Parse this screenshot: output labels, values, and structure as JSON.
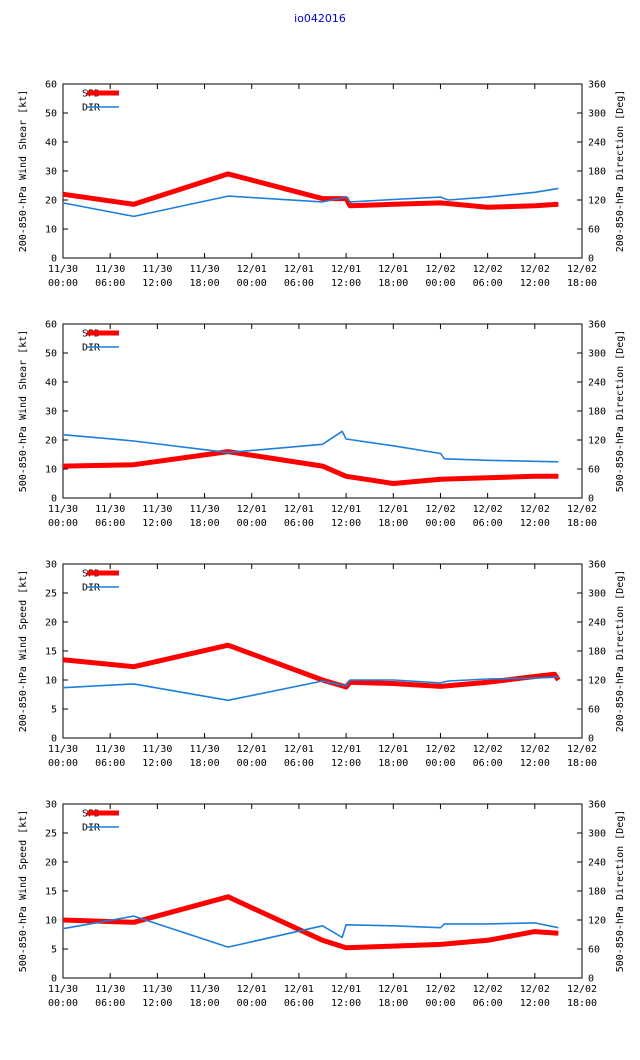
{
  "page_title": "io042016",
  "colors": {
    "spd": "#ff0000",
    "dir": "#1c7fdc",
    "title": "#0000cc"
  },
  "x_ticks": [
    [
      "11/30",
      "00:00"
    ],
    [
      "11/30",
      "06:00"
    ],
    [
      "11/30",
      "12:00"
    ],
    [
      "11/30",
      "18:00"
    ],
    [
      "12/01",
      "00:00"
    ],
    [
      "12/01",
      "06:00"
    ],
    [
      "12/01",
      "12:00"
    ],
    [
      "12/01",
      "18:00"
    ],
    [
      "12/02",
      "00:00"
    ],
    [
      "12/02",
      "06:00"
    ],
    [
      "12/02",
      "12:00"
    ],
    [
      "12/02",
      "18:00"
    ]
  ],
  "chart_data": [
    {
      "type": "line",
      "ylabel_left": "200-850-hPa Wind Shear [kt]",
      "ylabel_right": "200-850-hPa Direction [Deg]",
      "xlim_hours": [
        0,
        66
      ],
      "ylim_left": [
        0,
        60
      ],
      "yticks_left": [
        0,
        10,
        20,
        30,
        40,
        50,
        60
      ],
      "ylim_right": [
        0,
        360
      ],
      "yticks_right": [
        0,
        60,
        120,
        180,
        240,
        300,
        360
      ],
      "legend": [
        "SPD",
        "DIR"
      ],
      "series": [
        {
          "name": "SPD",
          "axis": "left",
          "x_hours": [
            0,
            9,
            21,
            33,
            36,
            36.5,
            42,
            48,
            54,
            60,
            63
          ],
          "values": [
            22,
            18.5,
            29,
            20.5,
            20.5,
            18,
            18.5,
            19,
            17.5,
            18,
            18.5
          ]
        },
        {
          "name": "DIR",
          "axis": "right",
          "x_hours": [
            0,
            9,
            21,
            33,
            36,
            36.5,
            42,
            48,
            49,
            54,
            60,
            63
          ],
          "values": [
            114,
            86,
            128,
            116,
            126,
            116,
            121,
            126,
            120,
            126,
            136,
            144
          ]
        }
      ]
    },
    {
      "type": "line",
      "ylabel_left": "500-850-hPa Wind Shear [kt]",
      "ylabel_right": "500-850-hPa Direction [Deg]",
      "xlim_hours": [
        0,
        66
      ],
      "ylim_left": [
        0,
        60
      ],
      "yticks_left": [
        0,
        10,
        20,
        30,
        40,
        50,
        60
      ],
      "ylim_right": [
        0,
        360
      ],
      "yticks_right": [
        0,
        60,
        120,
        180,
        240,
        300,
        360
      ],
      "legend": [
        "SPD",
        "DIR"
      ],
      "series": [
        {
          "name": "SPD",
          "axis": "left",
          "x_hours": [
            0,
            9,
            21,
            33,
            36,
            42,
            48,
            54,
            60,
            63
          ],
          "values": [
            11,
            11.5,
            16,
            11,
            7.5,
            5,
            6.5,
            7,
            7.5,
            7.5
          ]
        },
        {
          "name": "DIR",
          "axis": "right",
          "x_hours": [
            0,
            9,
            21,
            33,
            35.5,
            36,
            42,
            48,
            48.5,
            54,
            60,
            63
          ],
          "values": [
            131,
            118,
            94,
            111,
            138,
            122,
            108,
            92,
            81,
            78,
            76,
            75
          ]
        }
      ]
    },
    {
      "type": "line",
      "ylabel_left": "200-850-hPa Wind Speed [kt]",
      "ylabel_right": "200-850-hPa Direction [Deg]",
      "xlim_hours": [
        0,
        66
      ],
      "ylim_left": [
        0,
        30
      ],
      "yticks_left": [
        0,
        5,
        10,
        15,
        20,
        25,
        30
      ],
      "ylim_right": [
        0,
        360
      ],
      "yticks_right": [
        0,
        60,
        120,
        180,
        240,
        300,
        360
      ],
      "legend": [
        "SPD",
        "DIR"
      ],
      "series": [
        {
          "name": "SPD",
          "axis": "left",
          "x_hours": [
            0,
            9,
            21,
            33,
            36,
            36.5,
            42,
            48,
            54,
            60,
            62.5,
            63
          ],
          "values": [
            13.5,
            12.3,
            16,
            10,
            8.8,
            9.6,
            9.4,
            8.9,
            9.6,
            10.6,
            11,
            10
          ]
        },
        {
          "name": "DIR",
          "axis": "right",
          "x_hours": [
            0,
            9,
            21,
            33,
            36,
            36.5,
            42,
            48,
            49,
            54,
            60,
            63
          ],
          "values": [
            104,
            112,
            78,
            118,
            108,
            120,
            120,
            114,
            118,
            122,
            124,
            126
          ]
        }
      ]
    },
    {
      "type": "line",
      "ylabel_left": "500-850-hPa Wind Speed [kt]",
      "ylabel_right": "500-850-hPa Direction [Deg]",
      "xlim_hours": [
        0,
        66
      ],
      "ylim_left": [
        0,
        30
      ],
      "yticks_left": [
        0,
        5,
        10,
        15,
        20,
        25,
        30
      ],
      "ylim_right": [
        0,
        360
      ],
      "yticks_right": [
        0,
        60,
        120,
        180,
        240,
        300,
        360
      ],
      "legend": [
        "SPD",
        "DIR"
      ],
      "series": [
        {
          "name": "SPD",
          "axis": "left",
          "x_hours": [
            0,
            9,
            21,
            33,
            36,
            42,
            48,
            54,
            60,
            63
          ],
          "values": [
            10,
            9.6,
            14,
            6.5,
            5.2,
            5.5,
            5.8,
            6.5,
            8,
            7.7
          ]
        },
        {
          "name": "DIR",
          "axis": "right",
          "x_hours": [
            0,
            9,
            21,
            33,
            35.5,
            36,
            42,
            48,
            48.5,
            54,
            60,
            63
          ],
          "values": [
            102,
            128,
            64,
            108,
            84,
            110,
            108,
            104,
            112,
            112,
            114,
            104
          ]
        }
      ]
    }
  ]
}
